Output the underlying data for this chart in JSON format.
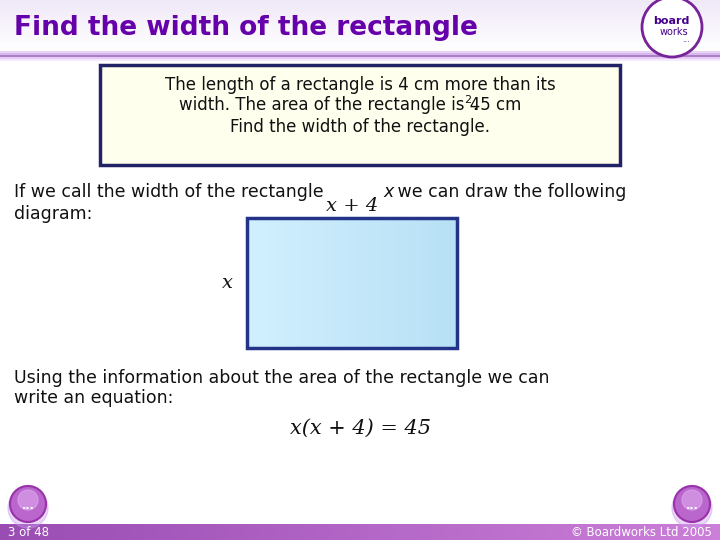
{
  "title": "Find the width of the rectangle",
  "title_color": "#6600aa",
  "bg_color": "#ffffff",
  "header_bg": "#ffffff",
  "problem_box_text_line1": "The length of a rectangle is 4 cm more than its",
  "problem_box_text_line2": "width. The area of the rectangle is 45 cm",
  "problem_box_superscript": "2",
  "problem_box_text_line3": "Find the width of the rectangle.",
  "problem_box_bg": "#ffffee",
  "problem_box_border": "#222266",
  "body_text1_part1": "If we call the width of the rectangle ",
  "body_text1_italic": "x",
  "body_text1_part2": " we can draw the following",
  "body_text2": "diagram:",
  "label_top": "x + 4",
  "label_left": "x",
  "rect_fill_top": "#b8ddf0",
  "rect_fill_bot": "#ddf0ff",
  "rect_border_color": "#223388",
  "bottom_text1": "Using the information about the area of the rectangle we can",
  "bottom_text2": "write an equation:",
  "equation": "x(x + 4) = 45",
  "footer_left": "3 of 48",
  "footer_right": "© Boardworks Ltd 2005",
  "footer_bg": "#bb88cc",
  "footer_line_color": "#cc99dd",
  "nav_fill": "#cc88dd",
  "nav_border": "#9933aa",
  "logo_border": "#772299",
  "logo_text_color": "#440088"
}
